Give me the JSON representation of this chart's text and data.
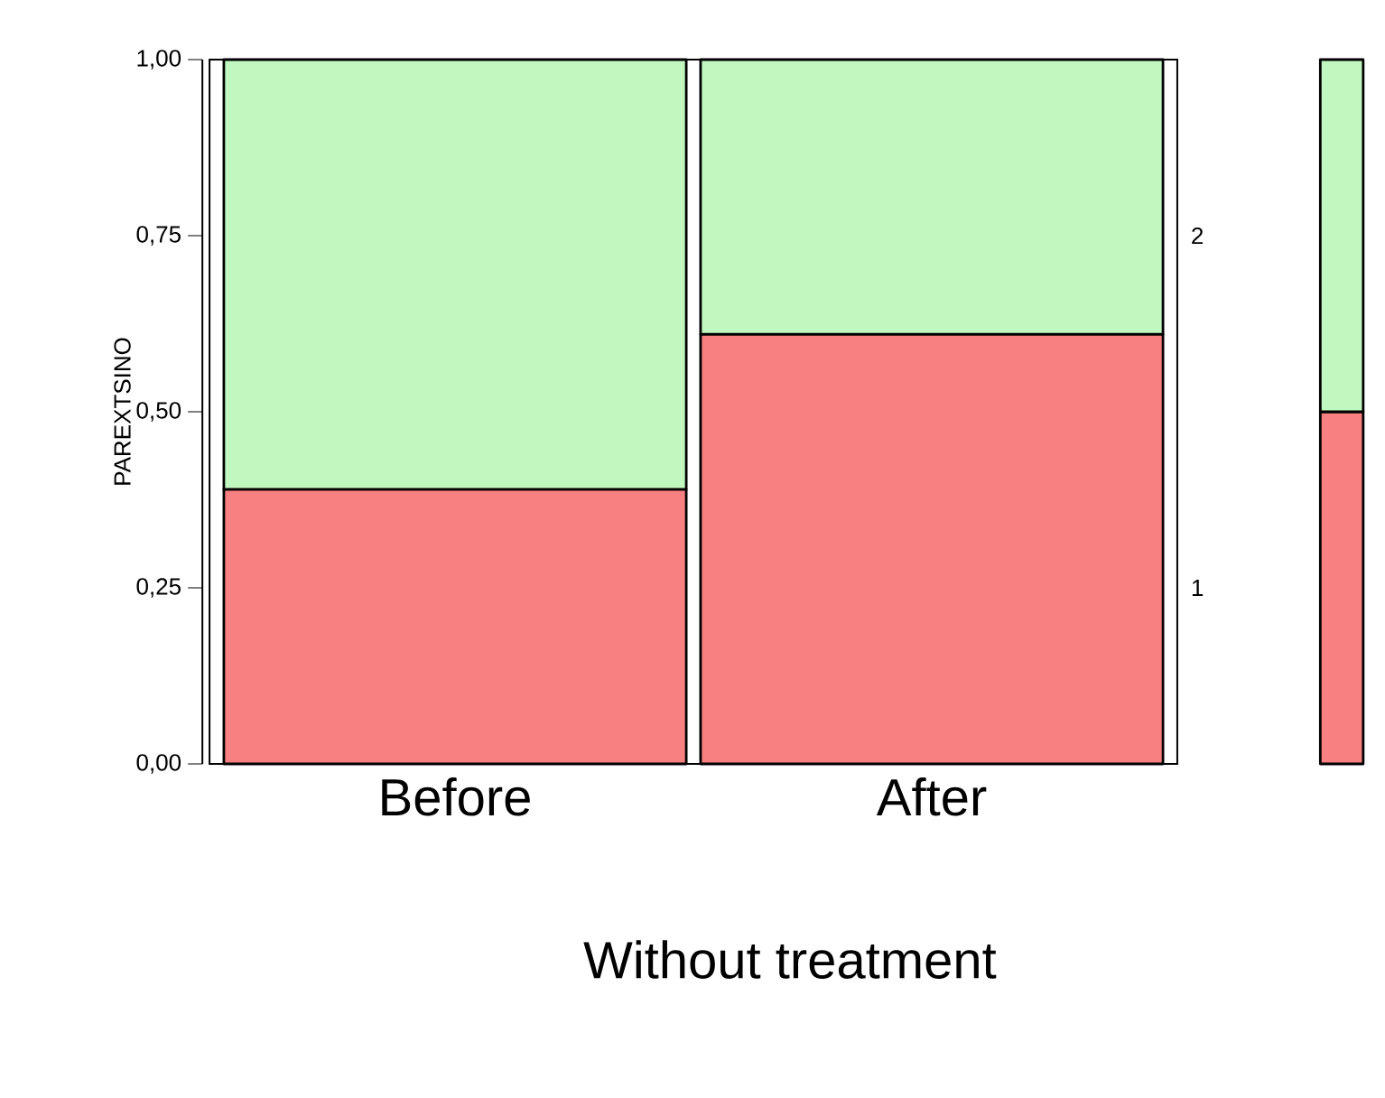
{
  "chart_data": {
    "type": "bar",
    "stacked": true,
    "xlabel": "Without treatment",
    "ylabel": "PAREXTSINO",
    "categories": [
      "Before",
      "After",
      null
    ],
    "ylim": [
      0,
      1
    ],
    "yticks": [
      {
        "value": 0,
        "label": "0,00"
      },
      {
        "value": 0.25,
        "label": "0,25"
      },
      {
        "value": 0.5,
        "label": "0,50"
      },
      {
        "value": 0.75,
        "label": "0,75"
      },
      {
        "value": 1,
        "label": "1,00"
      }
    ],
    "series": [
      {
        "name": "1",
        "color": "#f88080",
        "values": [
          0.39,
          0.61,
          0.5
        ]
      },
      {
        "name": "2",
        "color": "#c0f8c0",
        "values": [
          0.61,
          0.39,
          0.5
        ]
      }
    ]
  }
}
